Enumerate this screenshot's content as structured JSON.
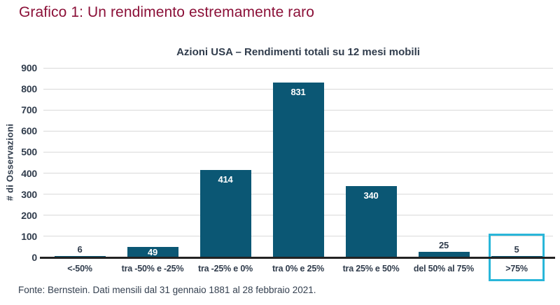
{
  "page": {
    "title": "Grafico 1: Un rendimento estremamente raro",
    "source_note": "Fonte: Bernstein. Dati mensili dal 31 gennaio 1881 al 28 febbraio 2021."
  },
  "chart_data": {
    "type": "bar",
    "title": "Azioni USA – Rendimenti totali su 12 mesi mobili",
    "xlabel": "",
    "ylabel": "# di Osservazioni",
    "categories": [
      "<-50%",
      "tra -50% e -25%",
      "tra -25% e 0%",
      "tra 0% e 25%",
      "tra 25% e 50%",
      "del 50% al 75%",
      ">75%"
    ],
    "values": [
      6,
      49,
      414,
      831,
      340,
      25,
      5
    ],
    "ylim": [
      0,
      900
    ],
    "ytick_step": 100,
    "grid": true,
    "legend": "none",
    "highlight": {
      "category_index": 6
    }
  },
  "colors": {
    "page_title": "#8b1038",
    "chart_text": "#303c4c",
    "bar_fill": "#0b5774",
    "value_label_inside": "#ffffff",
    "value_label_outside": "#303c4c",
    "gridline": "#d9d9d9",
    "axis_line": "#232323",
    "highlight_border": "#29b6d9",
    "footer_text": "#333f4f"
  }
}
